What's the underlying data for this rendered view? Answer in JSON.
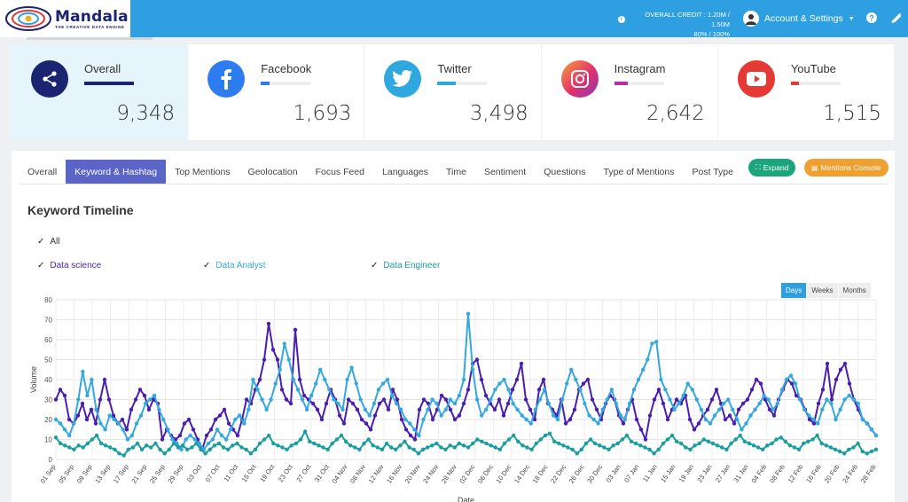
{
  "header": {
    "logo_name": "Mandala",
    "logo_tagline": "THE CREATIVE DATA ENGINE",
    "credit_line1": "OVERALL CREDIT : 1.20M / 1.50M",
    "credit_line2": "80% / 100%",
    "account_label": "Account & Settings",
    "icons": [
      "info-icon",
      "edit-icon",
      "user-icon",
      "chevron-down-icon"
    ]
  },
  "stats": [
    {
      "name": "Overall",
      "value": "9,348",
      "color": "#1a2470",
      "bar": 1.0,
      "icon": "share-icon"
    },
    {
      "name": "Facebook",
      "value": "1,693",
      "color": "#2e7df0",
      "bar": 0.18,
      "icon": "facebook-icon"
    },
    {
      "name": "Twitter",
      "value": "3,498",
      "color": "#2fa8e0",
      "bar": 0.37,
      "icon": "twitter-icon"
    },
    {
      "name": "Instagram",
      "value": "2,642",
      "color": "#c02ca5",
      "bar": 0.28,
      "icon": "instagram-icon"
    },
    {
      "name": "YouTube",
      "value": "1,515",
      "color": "#e53935",
      "bar": 0.16,
      "icon": "youtube-icon"
    }
  ],
  "tabs": [
    "Overall",
    "Keyword & Hashtag",
    "Top Mentions",
    "Geolocation",
    "Focus Feed",
    "Languages",
    "Time",
    "Sentiment",
    "Questions",
    "Type of Mentions",
    "Post Type"
  ],
  "active_tab": "Keyword & Hashtag",
  "buttons": {
    "expand": "Expand",
    "console": "Mentions Console"
  },
  "section_title": "Keyword Timeline",
  "filters": {
    "all": "All",
    "series": [
      "Data science",
      "Data Analyst",
      "Data Engineer"
    ]
  },
  "range": {
    "options": [
      "Days",
      "Weeks",
      "Months"
    ],
    "selected": "Days"
  },
  "chart_data": {
    "type": "line",
    "xlabel": "Date",
    "ylabel": "Volume",
    "ylim": [
      0,
      80
    ],
    "yticks": [
      0,
      10,
      20,
      30,
      40,
      50,
      60,
      70,
      80
    ],
    "grid": true,
    "x_tick_labels": [
      "01 Sep",
      "05 Sep",
      "09 Sep",
      "13 Sep",
      "17 Sep",
      "21 Sep",
      "25 Sep",
      "29 Sep",
      "03 Oct",
      "07 Oct",
      "11 Oct",
      "15 Oct",
      "19 Oct",
      "23 Oct",
      "27 Oct",
      "31 Oct",
      "04 Nov",
      "08 Nov",
      "12 Nov",
      "16 Nov",
      "20 Nov",
      "24 Nov",
      "28 Nov",
      "02 Dec",
      "06 Dec",
      "10 Dec",
      "14 Dec",
      "18 Dec",
      "22 Dec",
      "26 Dec",
      "30 Dec",
      "03 Jan",
      "07 Jan",
      "11 Jan",
      "15 Jan",
      "19 Jan",
      "23 Jan",
      "27 Jan",
      "31 Jan",
      "04 Feb",
      "08 Feb",
      "12 Feb",
      "16 Feb",
      "20 Feb",
      "24 Feb",
      "28 Feb"
    ],
    "series": [
      {
        "name": "Data science",
        "color": "#4a1fb0",
        "values": [
          30,
          35,
          32,
          20,
          18,
          22,
          28,
          20,
          25,
          18,
          30,
          40,
          30,
          22,
          18,
          20,
          15,
          25,
          30,
          35,
          32,
          25,
          30,
          28,
          10,
          15,
          12,
          10,
          12,
          18,
          20,
          15,
          10,
          5,
          12,
          15,
          20,
          22,
          25,
          18,
          15,
          12,
          20,
          30,
          28,
          35,
          40,
          50,
          68,
          55,
          50,
          35,
          30,
          28,
          65,
          40,
          32,
          30,
          28,
          25,
          20,
          28,
          35,
          30,
          22,
          18,
          30,
          28,
          25,
          20,
          18,
          15,
          22,
          28,
          30,
          25,
          35,
          30,
          20,
          15,
          12,
          10,
          25,
          30,
          28,
          20,
          25,
          32,
          30,
          25,
          20,
          22,
          28,
          35,
          48,
          50,
          40,
          32,
          28,
          25,
          30,
          22,
          28,
          35,
          40,
          48,
          30,
          25,
          20,
          35,
          40,
          28,
          25,
          22,
          30,
          18,
          20,
          25,
          35,
          38,
          40,
          30,
          25,
          20,
          28,
          32,
          30,
          22,
          18,
          25,
          30,
          20,
          15,
          10,
          22,
          30,
          35,
          28,
          20,
          25,
          30,
          28,
          32,
          20,
          15,
          18,
          22,
          25,
          30,
          35,
          28,
          20,
          22,
          18,
          25,
          28,
          30,
          35,
          40,
          38,
          30,
          25,
          22,
          30,
          35,
          40,
          38,
          32,
          30,
          25,
          20,
          18,
          28,
          35,
          48,
          30,
          40,
          45,
          48,
          38,
          30,
          25,
          20,
          18,
          15,
          12
        ],
        "note": ""
      },
      {
        "name": "Data Analyst",
        "color": "#35a8e0",
        "values": [
          20,
          18,
          15,
          12,
          18,
          30,
          44,
          32,
          40,
          25,
          18,
          15,
          22,
          20,
          18,
          15,
          10,
          12,
          18,
          22,
          28,
          30,
          32,
          25,
          20,
          15,
          10,
          8,
          5,
          10,
          12,
          10,
          8,
          5,
          8,
          10,
          15,
          12,
          10,
          15,
          20,
          22,
          18,
          25,
          40,
          35,
          30,
          25,
          30,
          38,
          45,
          58,
          50,
          40,
          35,
          30,
          25,
          32,
          38,
          45,
          40,
          35,
          30,
          28,
          25,
          40,
          46,
          38,
          30,
          25,
          22,
          28,
          35,
          38,
          40,
          32,
          28,
          25,
          20,
          18,
          15,
          12,
          20,
          25,
          30,
          28,
          22,
          25,
          30,
          28,
          32,
          40,
          73,
          45,
          30,
          22,
          25,
          30,
          35,
          38,
          40,
          35,
          28,
          25,
          22,
          20,
          18,
          25,
          30,
          35,
          28,
          22,
          20,
          30,
          38,
          45,
          40,
          35,
          28,
          22,
          20,
          18,
          25,
          30,
          35,
          28,
          22,
          20,
          28,
          35,
          40,
          45,
          50,
          58,
          59,
          40,
          35,
          30,
          25,
          28,
          32,
          38,
          35,
          30,
          25,
          20,
          18,
          22,
          25,
          28,
          30,
          25,
          20,
          15,
          18,
          22,
          25,
          28,
          32,
          30,
          25,
          28,
          35,
          40,
          42,
          38,
          30,
          25,
          22,
          20,
          18,
          25,
          30,
          28,
          20,
          25,
          30,
          32,
          30,
          28,
          20,
          18,
          15,
          12
        ]
      },
      {
        "name": "Data Engineer",
        "color": "#1a9e9e",
        "values": [
          11,
          8,
          7,
          6,
          5,
          7,
          6,
          8,
          10,
          12,
          8,
          7,
          6,
          5,
          3,
          2,
          5,
          6,
          8,
          5,
          7,
          6,
          8,
          5,
          3,
          5,
          8,
          6,
          7,
          5,
          6,
          8,
          5,
          3,
          5,
          7,
          8,
          6,
          5,
          7,
          8,
          6,
          5,
          3,
          5,
          8,
          10,
          12,
          8,
          7,
          6,
          5,
          7,
          8,
          10,
          14,
          9,
          8,
          7,
          6,
          5,
          8,
          10,
          12,
          9,
          7,
          6,
          5,
          8,
          10,
          7,
          6,
          5,
          8,
          6,
          5,
          7,
          9,
          6,
          5,
          3,
          5,
          6,
          7,
          8,
          6,
          5,
          7,
          6,
          8,
          7,
          6,
          8,
          10,
          9,
          8,
          7,
          6,
          5,
          8,
          10,
          12,
          9,
          7,
          6,
          5,
          8,
          10,
          12,
          13,
          9,
          8,
          7,
          6,
          5,
          3,
          5,
          8,
          10,
          8,
          7,
          6,
          5,
          7,
          8,
          10,
          12,
          9,
          8,
          7,
          6,
          5,
          3,
          5,
          8,
          10,
          12,
          9,
          8,
          6,
          5,
          7,
          8,
          10,
          9,
          8,
          7,
          6,
          5,
          8,
          10,
          12,
          9,
          8,
          7,
          6,
          5,
          7,
          8,
          10,
          11,
          9,
          7,
          6,
          5,
          8,
          9,
          10,
          12,
          8,
          7,
          6,
          5,
          4,
          3,
          5,
          6,
          8,
          4,
          3,
          4,
          5
        ]
      }
    ]
  }
}
